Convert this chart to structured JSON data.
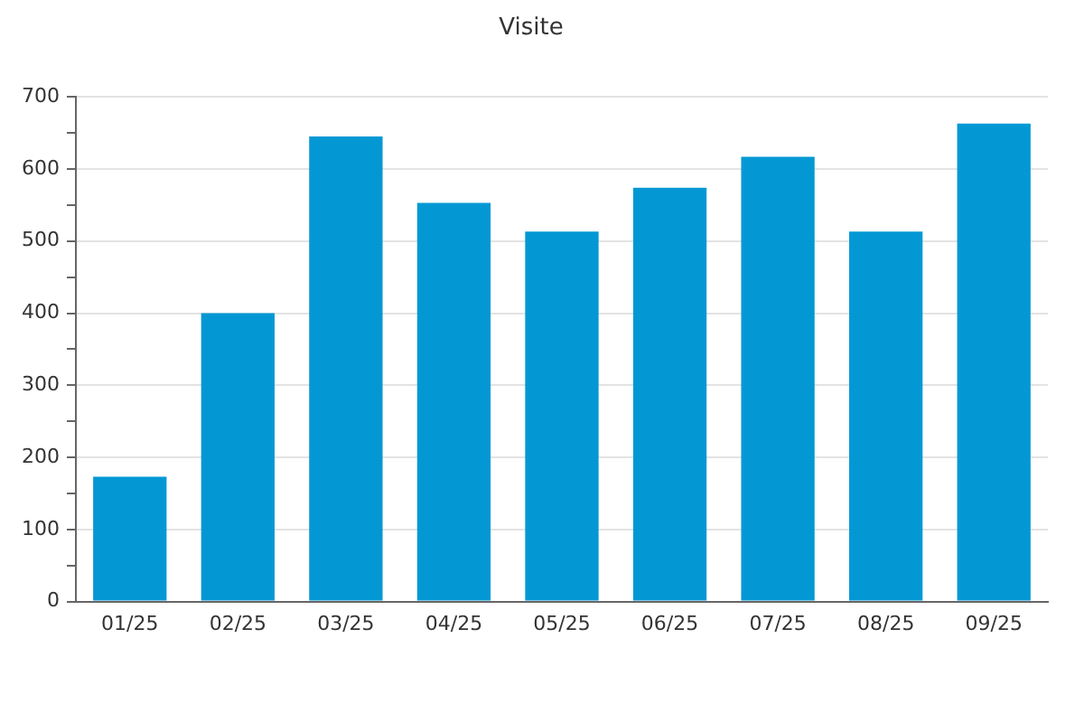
{
  "chart_data": {
    "type": "bar",
    "title": "Visite",
    "categories": [
      "01/25",
      "02/25",
      "03/25",
      "04/25",
      "05/25",
      "06/25",
      "07/25",
      "08/25",
      "09/25"
    ],
    "values": [
      173,
      400,
      645,
      553,
      513,
      574,
      617,
      513,
      663
    ],
    "color": "#0398d4",
    "ylim": [
      0,
      700
    ],
    "yticks": [
      0,
      {
        "value": 50,
        "label": null
      },
      100,
      {
        "value": 150,
        "label": null
      },
      200,
      {
        "value": 250,
        "label": null
      },
      300,
      {
        "value": 350,
        "label": null
      },
      400,
      {
        "value": 450,
        "label": null
      },
      500,
      {
        "value": 550,
        "label": null
      },
      600,
      {
        "value": 650,
        "label": null
      },
      700
    ],
    "grid": "y",
    "legend": false
  }
}
